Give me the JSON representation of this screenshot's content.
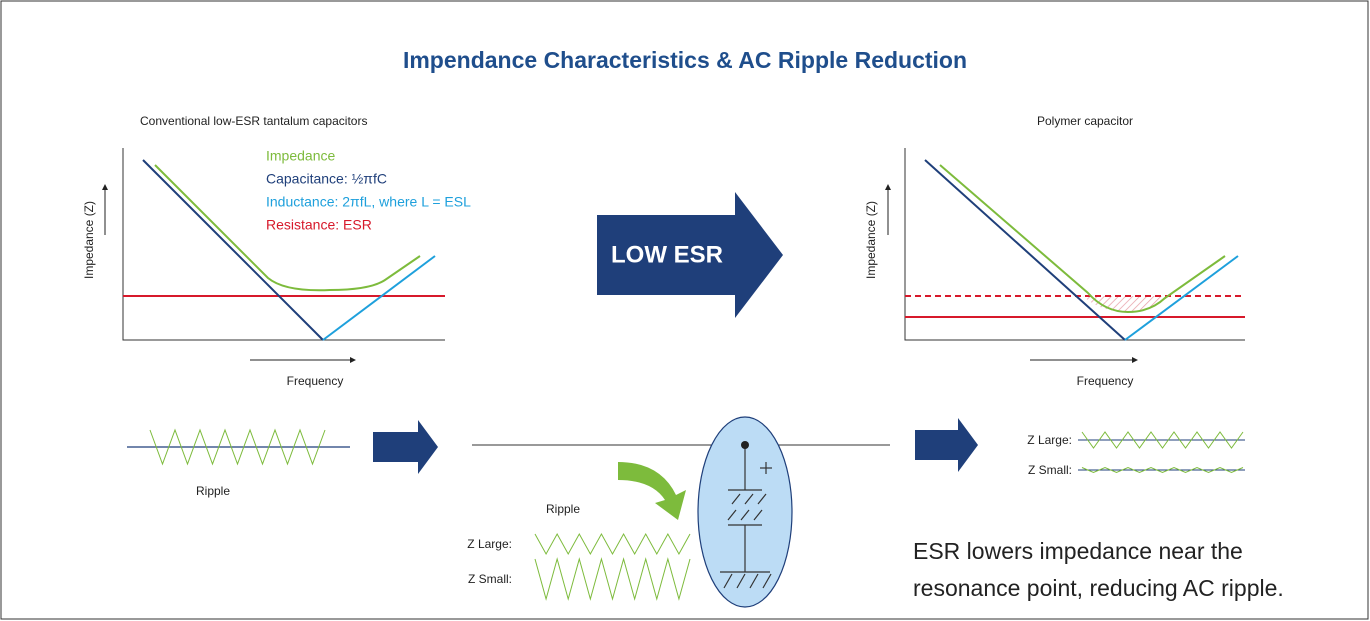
{
  "title": "Impendance Characteristics & AC Ripple Reduction",
  "left_graph": {
    "caption": "Conventional low-ESR tantalum capacitors",
    "y_label": "Impedance (Z)",
    "x_label": "Frequency",
    "legend": [
      "Impedance",
      "Capacitance: ½πfC",
      "Inductance: 2πfL, where L = ESL",
      "Resistance: ESR"
    ]
  },
  "arrow_label": "LOW ESR",
  "right_graph": {
    "caption": "Polymer capacitor",
    "y_label": "Impedance (Z)",
    "x_label": "Frequency"
  },
  "ripple": {
    "input_label": "Ripple",
    "middle_label": "Ripple",
    "middle_rows": [
      "Z Large:",
      "Z Small:"
    ],
    "output_rows": [
      "Z Large:",
      "Z Small:"
    ]
  },
  "conclusion": [
    "ESR lowers impedance near the",
    "resonance point, reducing AC ripple."
  ]
}
